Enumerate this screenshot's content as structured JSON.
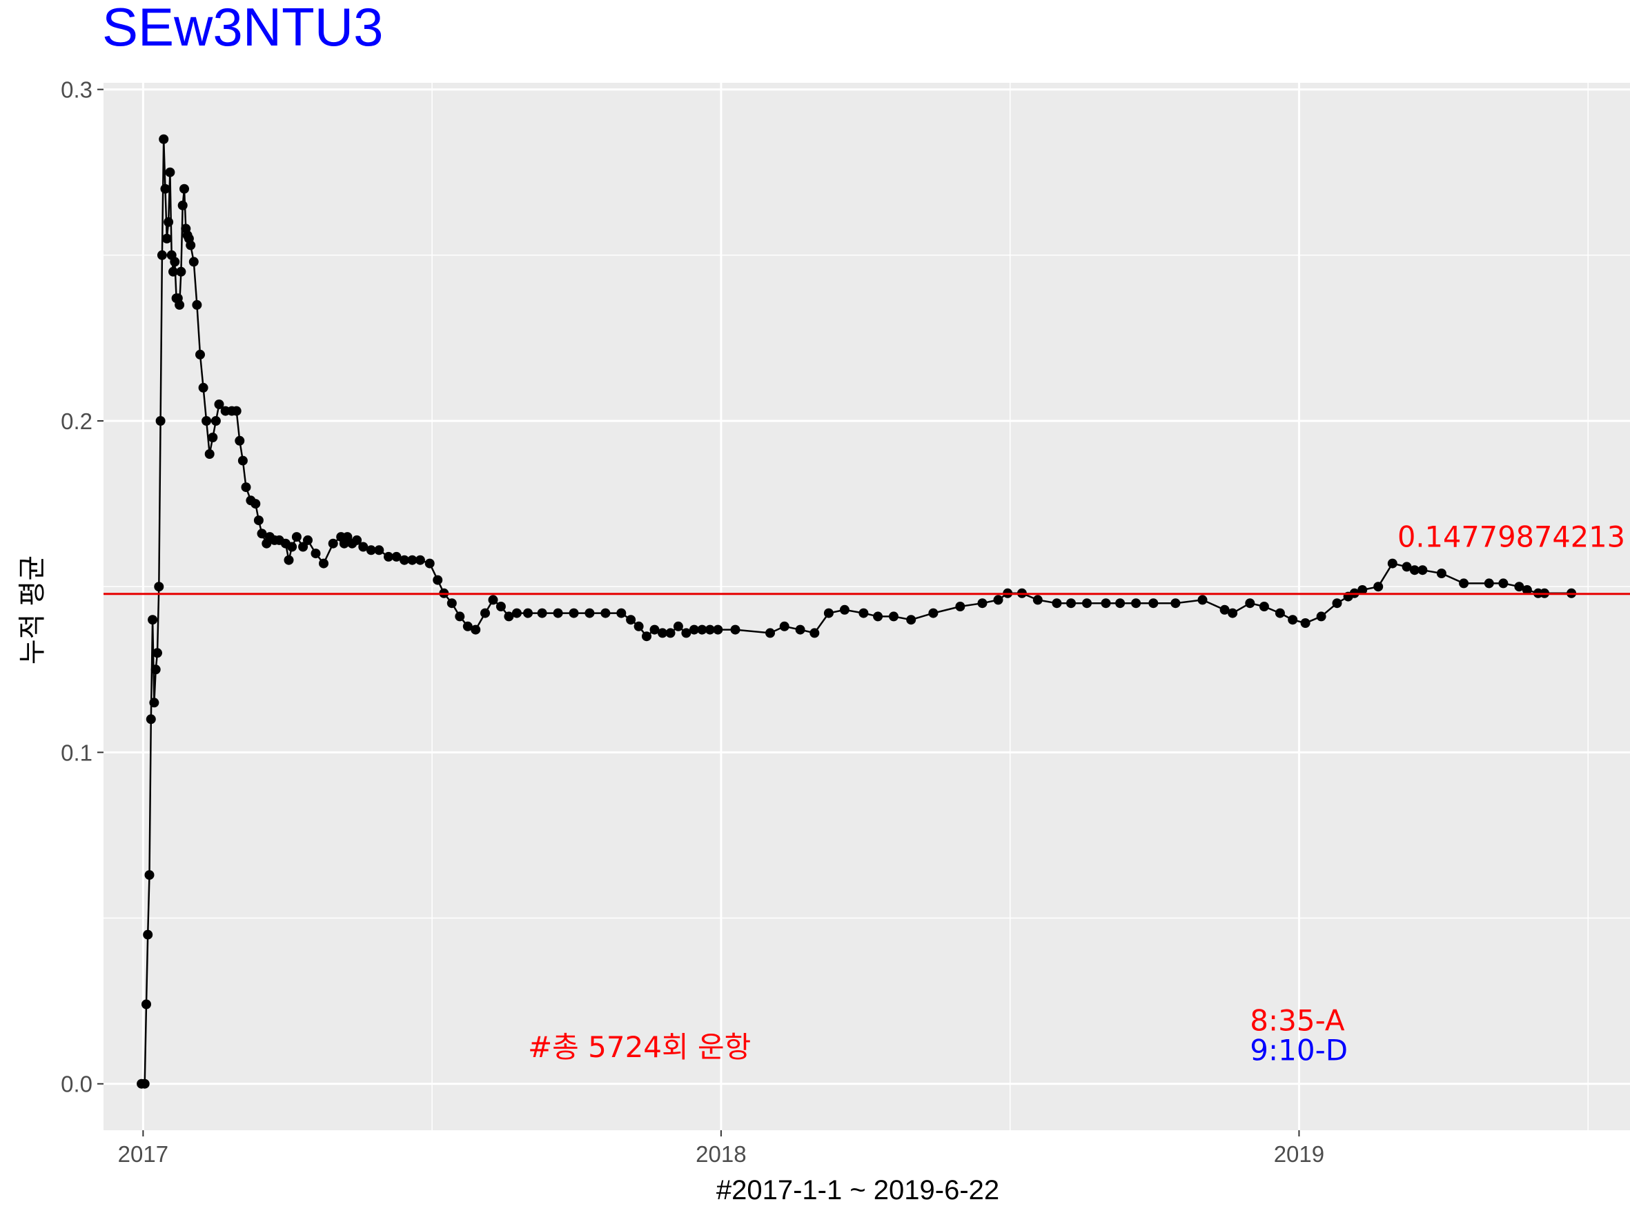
{
  "title": "SEw3NTU3",
  "colors": {
    "title": "#0000ff",
    "panel_background": "#ebebeb",
    "grid": "#ffffff",
    "series": "#000000",
    "hline": "#e60000",
    "annotation_red": "#ff0000",
    "annotation_blue": "#0000ff"
  },
  "chart_data": {
    "type": "line",
    "title": "SEw3NTU3",
    "xlabel": "#2017-1-1 ~ 2019-6-22",
    "ylabel": "누적 평균",
    "x_ticks": [
      "2017",
      "2018",
      "2019"
    ],
    "y_ticks": [
      "0.0",
      "0.1",
      "0.2",
      "0.3"
    ],
    "xlim": [
      "2016-12-07",
      "2019-07-29"
    ],
    "ylim": [
      -0.014,
      0.302
    ],
    "grid": true,
    "markers": "points",
    "hline": {
      "y": 0.1478,
      "label": "0.14779874213"
    },
    "annotations": [
      {
        "text": "#총 5724회 운항",
        "x": "2017-09-01",
        "y": 0.011,
        "color": "red"
      },
      {
        "text": "8:35-A",
        "x": "2018-12-01",
        "y": 0.019,
        "color": "red"
      },
      {
        "text": "9:10-D",
        "x": "2018-12-01",
        "y": 0.01,
        "color": "blue"
      }
    ],
    "series": [
      {
        "x": [
          "2016-12-31",
          "2017-01-02",
          "2017-01-03",
          "2017-01-04",
          "2017-01-05",
          "2017-01-06",
          "2017-01-07",
          "2017-01-08",
          "2017-01-09",
          "2017-01-10",
          "2017-01-11",
          "2017-01-12",
          "2017-01-13",
          "2017-01-14",
          "2017-01-15",
          "2017-01-16",
          "2017-01-17",
          "2017-01-18",
          "2017-01-19",
          "2017-01-20",
          "2017-01-21",
          "2017-01-22",
          "2017-01-23",
          "2017-01-24",
          "2017-01-25",
          "2017-01-26",
          "2017-01-27",
          "2017-01-28",
          "2017-01-29",
          "2017-01-30",
          "2017-01-31",
          "2017-02-02",
          "2017-02-04",
          "2017-02-06",
          "2017-02-08",
          "2017-02-10",
          "2017-02-12",
          "2017-02-14",
          "2017-02-16",
          "2017-02-18",
          "2017-02-22",
          "2017-02-26",
          "2017-03-01",
          "2017-03-03",
          "2017-03-05",
          "2017-03-07",
          "2017-03-10",
          "2017-03-13",
          "2017-03-15",
          "2017-03-17",
          "2017-03-20",
          "2017-03-22",
          "2017-03-25",
          "2017-03-28",
          "2017-04-01",
          "2017-04-03",
          "2017-04-05",
          "2017-04-08",
          "2017-04-12",
          "2017-04-15",
          "2017-04-20",
          "2017-04-25",
          "2017-05-01",
          "2017-05-06",
          "2017-05-08",
          "2017-05-10",
          "2017-05-13",
          "2017-05-16",
          "2017-05-20",
          "2017-05-25",
          "2017-05-30",
          "2017-06-05",
          "2017-06-10",
          "2017-06-15",
          "2017-06-20",
          "2017-06-25",
          "2017-07-01",
          "2017-07-06",
          "2017-07-10",
          "2017-07-15",
          "2017-07-20",
          "2017-07-25",
          "2017-07-30",
          "2017-08-05",
          "2017-08-10",
          "2017-08-15",
          "2017-08-20",
          "2017-08-25",
          "2017-09-01",
          "2017-09-10",
          "2017-09-20",
          "2017-09-30",
          "2017-10-10",
          "2017-10-20",
          "2017-10-30",
          "2017-11-05",
          "2017-11-10",
          "2017-11-15",
          "2017-11-20",
          "2017-11-25",
          "2017-11-30",
          "2017-12-05",
          "2017-12-10",
          "2017-12-15",
          "2017-12-20",
          "2017-12-25",
          "2017-12-30",
          "2018-01-10",
          "2018-02-01",
          "2018-02-10",
          "2018-02-20",
          "2018-03-01",
          "2018-03-10",
          "2018-03-20",
          "2018-04-01",
          "2018-04-10",
          "2018-04-20",
          "2018-05-01",
          "2018-05-15",
          "2018-06-01",
          "2018-06-15",
          "2018-06-25",
          "2018-07-01",
          "2018-07-10",
          "2018-07-20",
          "2018-08-01",
          "2018-08-10",
          "2018-08-20",
          "2018-09-01",
          "2018-09-10",
          "2018-09-20",
          "2018-10-01",
          "2018-10-15",
          "2018-11-01",
          "2018-11-15",
          "2018-11-20",
          "2018-12-01",
          "2018-12-10",
          "2018-12-20",
          "2018-12-28",
          "2019-01-05",
          "2019-01-15",
          "2019-01-25",
          "2019-02-01",
          "2019-02-05",
          "2019-02-10",
          "2019-02-20",
          "2019-03-01",
          "2019-03-10",
          "2019-03-15",
          "2019-03-20",
          "2019-04-01",
          "2019-04-15",
          "2019-05-01",
          "2019-05-10",
          "2019-05-20",
          "2019-05-25",
          "2019-06-01",
          "2019-06-05",
          "2019-06-22"
        ],
        "y": [
          0.0,
          0.0,
          0.024,
          0.045,
          0.063,
          0.11,
          0.14,
          0.115,
          0.125,
          0.13,
          0.15,
          0.2,
          0.25,
          0.285,
          0.27,
          0.255,
          0.26,
          0.275,
          0.25,
          0.245,
          0.248,
          0.237,
          0.237,
          0.235,
          0.245,
          0.265,
          0.27,
          0.258,
          0.256,
          0.255,
          0.253,
          0.248,
          0.235,
          0.22,
          0.21,
          0.2,
          0.19,
          0.195,
          0.2,
          0.205,
          0.203,
          0.203,
          0.203,
          0.194,
          0.188,
          0.18,
          0.176,
          0.175,
          0.17,
          0.166,
          0.163,
          0.165,
          0.164,
          0.164,
          0.163,
          0.158,
          0.162,
          0.165,
          0.162,
          0.164,
          0.16,
          0.157,
          0.163,
          0.165,
          0.163,
          0.165,
          0.163,
          0.164,
          0.162,
          0.161,
          0.161,
          0.159,
          0.159,
          0.158,
          0.158,
          0.158,
          0.157,
          0.152,
          0.148,
          0.145,
          0.141,
          0.138,
          0.137,
          0.142,
          0.146,
          0.144,
          0.141,
          0.142,
          0.142,
          0.142,
          0.142,
          0.142,
          0.142,
          0.142,
          0.142,
          0.14,
          0.138,
          0.135,
          0.137,
          0.136,
          0.136,
          0.138,
          0.136,
          0.137,
          0.137,
          0.137,
          0.137,
          0.137,
          0.136,
          0.138,
          0.137,
          0.136,
          0.142,
          0.143,
          0.142,
          0.141,
          0.141,
          0.14,
          0.142,
          0.144,
          0.145,
          0.146,
          0.148,
          0.148,
          0.146,
          0.145,
          0.145,
          0.145,
          0.145,
          0.145,
          0.145,
          0.145,
          0.145,
          0.146,
          0.143,
          0.142,
          0.145,
          0.144,
          0.142,
          0.14,
          0.139,
          0.141,
          0.145,
          0.147,
          0.148,
          0.149,
          0.15,
          0.157,
          0.156,
          0.155,
          0.155,
          0.154,
          0.151,
          0.151,
          0.151,
          0.15,
          0.149,
          0.148,
          0.148,
          0.148
        ]
      }
    ]
  }
}
